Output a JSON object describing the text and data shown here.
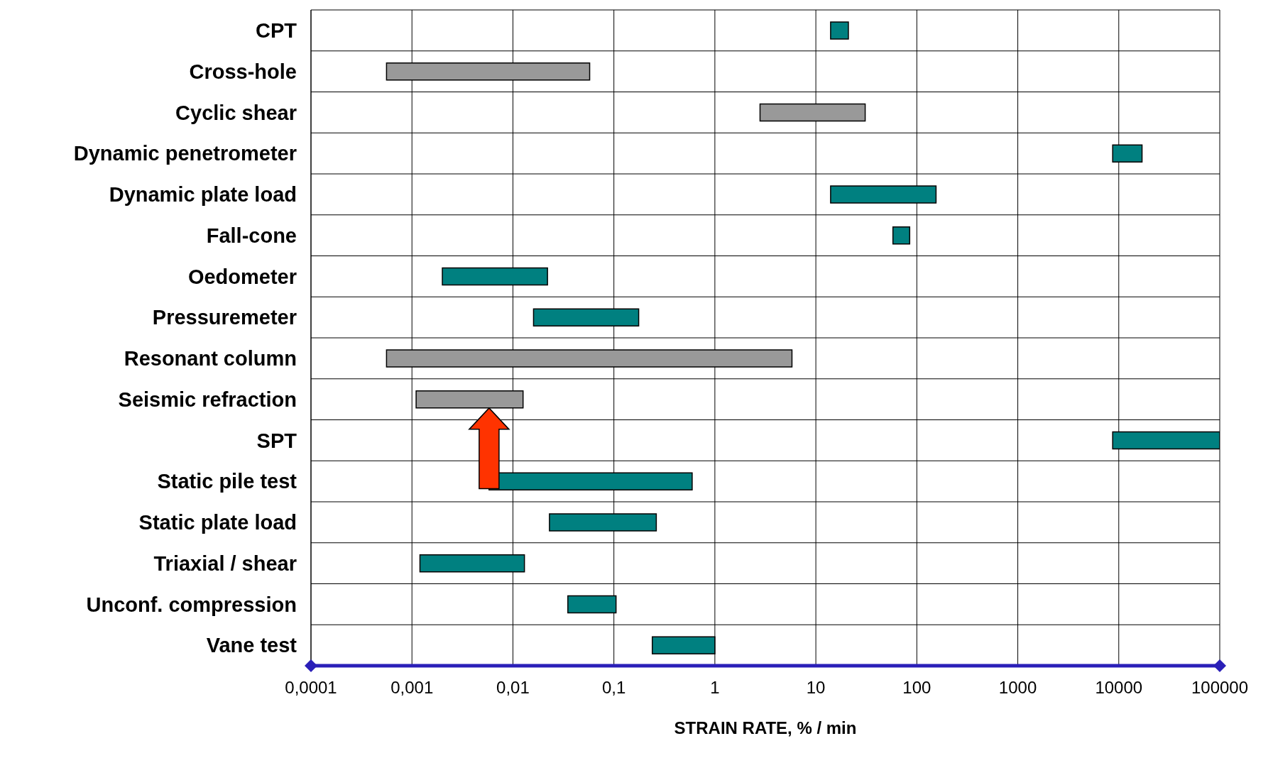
{
  "chart_data": {
    "type": "bar",
    "orientation": "horizontal",
    "xlabel": "STRAIN RATE, % / min",
    "categories": [
      "CPT",
      "Cross-hole",
      "Cyclic shear",
      "Dynamic penetrometer",
      "Dynamic plate load",
      "Fall-cone",
      "Oedometer",
      "Pressuremeter",
      "Resonant column",
      "Seismic refraction",
      "SPT",
      "Static pile test",
      "Static plate load",
      "Triaxial / shear",
      "Unconf. compression",
      "Vane test"
    ],
    "base": [
      14,
      0.00056,
      2.8,
      8700,
      14,
      58,
      0.002,
      0.016,
      0.00056,
      0.0011,
      8700,
      0.0058,
      0.023,
      0.0012,
      0.035,
      0.24
    ],
    "values": [
      7,
      0.057,
      28,
      8300,
      141,
      27,
      0.02,
      0.16,
      5.8,
      0.0115,
      91300,
      0.59,
      0.24,
      0.0118,
      0.07,
      0.76
    ],
    "colors": [
      "#008080",
      "#999999",
      "#999999",
      "#008080",
      "#008080",
      "#008080",
      "#008080",
      "#008080",
      "#999999",
      "#999999",
      "#008080",
      "#008080",
      "#008080",
      "#008080",
      "#008080",
      "#008080"
    ],
    "log": "x",
    "xlim": [
      0.0001,
      100000
    ],
    "xticks": [
      {
        "value": 0.0001,
        "label": "0,0001"
      },
      {
        "value": 0.001,
        "label": "0,001"
      },
      {
        "value": 0.01,
        "label": "0,01"
      },
      {
        "value": 0.1,
        "label": "0,1"
      },
      1,
      10,
      100,
      1000,
      10000,
      100000
    ],
    "grid": true
  }
}
